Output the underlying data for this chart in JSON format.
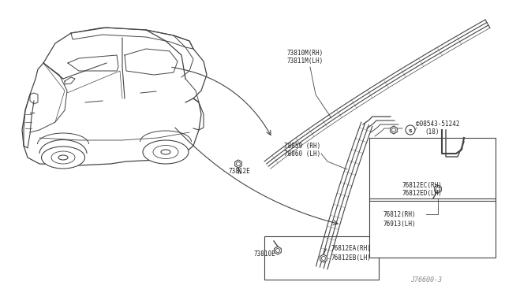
{
  "bg_color": "#ffffff",
  "fig_width": 6.4,
  "fig_height": 3.72,
  "line_color": "#444444",
  "text_color": "#222222",
  "font_size": 5.5,
  "diagram_code": "J76600-3",
  "labels": {
    "top_strip_1": "73810M(RH)",
    "top_strip_2": "73811M(LH)",
    "mid_strip_1": "78859 (RH)",
    "mid_strip_2": "78860 (LH)",
    "clip_73812": "73812E",
    "screw_1": "©08543-51242",
    "screw_2": "(18)",
    "clip_76812ec_1": "76812EC(RH)",
    "clip_76812ec_2": "76812ED(LH)",
    "box_1": "76812(RH)",
    "box_2": "76913(LH)",
    "clip_73810": "73810E",
    "bottom_1": "76812EA(RH)",
    "bottom_2": "76812EB(LH)",
    "diag_code": "J76600-3"
  }
}
